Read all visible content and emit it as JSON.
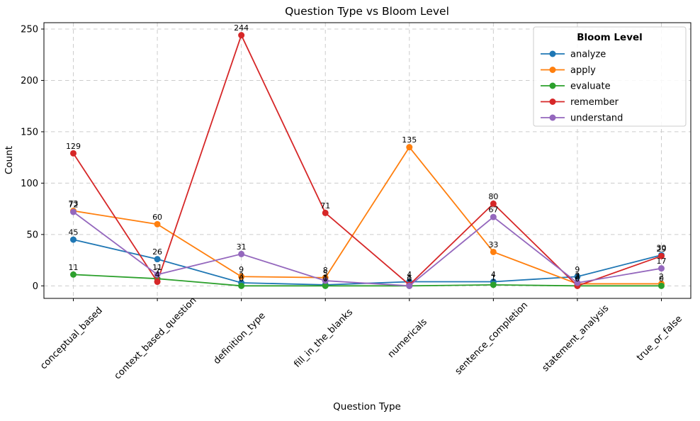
{
  "chart_data": {
    "type": "line",
    "title": "Question Type vs Bloom Level",
    "xlabel": "Question Type",
    "ylabel": "Count",
    "legend_title": "Bloom Level",
    "legend_position": "upper right",
    "grid": true,
    "marker": "circle",
    "categories": [
      "conceptual_based",
      "context_based_question",
      "definition_type",
      "fill_in_the_blanks",
      "numericals",
      "sentence_completion",
      "statement_analysis",
      "true_or_false"
    ],
    "series": [
      {
        "name": "analyze",
        "color": "#1f77b4",
        "values": [
          45,
          26,
          3,
          1,
          4,
          4,
          9,
          30
        ]
      },
      {
        "name": "apply",
        "color": "#ff7f0e",
        "values": [
          73,
          60,
          9,
          8,
          135,
          33,
          2,
          2
        ]
      },
      {
        "name": "evaluate",
        "color": "#2ca02c",
        "values": [
          11,
          7,
          0,
          0,
          0,
          1,
          0,
          0
        ]
      },
      {
        "name": "remember",
        "color": "#d62728",
        "values": [
          129,
          4,
          244,
          71,
          1,
          80,
          0,
          29
        ]
      },
      {
        "name": "understand",
        "color": "#9467bd",
        "values": [
          72,
          11,
          31,
          5,
          0,
          67,
          3,
          17
        ]
      }
    ],
    "yticks": [
      0,
      50,
      100,
      150,
      200,
      250
    ],
    "ylim": [
      -12.2,
      256.2
    ],
    "point_labels": true
  }
}
